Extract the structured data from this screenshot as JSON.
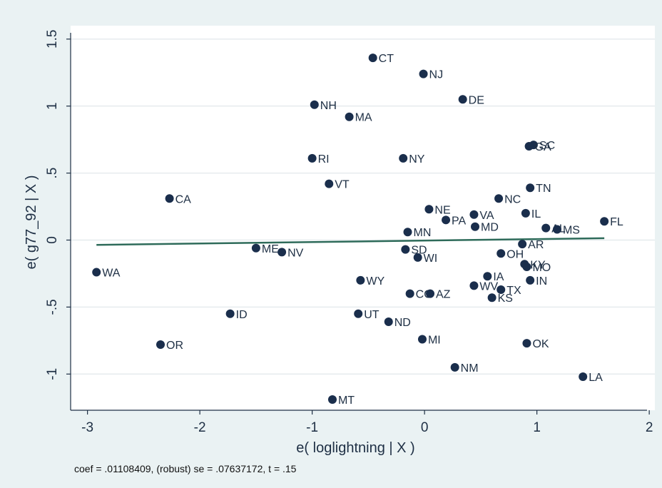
{
  "chart_data": {
    "type": "scatter",
    "xlabel": "e( loglightning | X )",
    "ylabel": "e( g77_92 | X )",
    "xlim": [
      -3.15,
      2.05
    ],
    "ylim": [
      -1.27,
      1.6
    ],
    "xticks": [
      -3,
      -2,
      -1,
      0,
      1,
      2
    ],
    "xtick_labels": [
      "-3",
      "-2",
      "-1",
      "0",
      "1",
      "2"
    ],
    "yticks": [
      -1,
      -0.5,
      0,
      0.5,
      1,
      1.5
    ],
    "ytick_labels": [
      "-1",
      "-.5",
      "0",
      ".5",
      "1",
      "1.5"
    ],
    "grid": "horizontal",
    "points": [
      {
        "label": "CT",
        "x": -0.46,
        "y": 1.36
      },
      {
        "label": "NJ",
        "x": -0.01,
        "y": 1.24
      },
      {
        "label": "DE",
        "x": 0.34,
        "y": 1.05
      },
      {
        "label": "NH",
        "x": -0.98,
        "y": 1.01
      },
      {
        "label": "MA",
        "x": -0.67,
        "y": 0.92
      },
      {
        "label": "SC",
        "x": 0.97,
        "y": 0.71
      },
      {
        "label": "GA",
        "x": 0.93,
        "y": 0.7
      },
      {
        "label": "RI",
        "x": -1.0,
        "y": 0.61
      },
      {
        "label": "NY",
        "x": -0.19,
        "y": 0.61
      },
      {
        "label": "VT",
        "x": -0.85,
        "y": 0.42
      },
      {
        "label": "TN",
        "x": 0.94,
        "y": 0.39
      },
      {
        "label": "CA",
        "x": -2.27,
        "y": 0.31
      },
      {
        "label": "NC",
        "x": 0.66,
        "y": 0.31
      },
      {
        "label": "NE",
        "x": 0.04,
        "y": 0.23
      },
      {
        "label": "IL",
        "x": 0.9,
        "y": 0.2
      },
      {
        "label": "VA",
        "x": 0.44,
        "y": 0.19
      },
      {
        "label": "PA",
        "x": 0.19,
        "y": 0.15
      },
      {
        "label": "FL",
        "x": 1.6,
        "y": 0.14
      },
      {
        "label": "MD",
        "x": 0.45,
        "y": 0.1
      },
      {
        "label": "AL",
        "x": 1.08,
        "y": 0.09
      },
      {
        "label": "MS",
        "x": 1.18,
        "y": 0.08
      },
      {
        "label": "MN",
        "x": -0.15,
        "y": 0.06
      },
      {
        "label": "AR",
        "x": 0.87,
        "y": -0.03
      },
      {
        "label": "ME",
        "x": -1.5,
        "y": -0.06
      },
      {
        "label": "SD",
        "x": -0.17,
        "y": -0.07
      },
      {
        "label": "NV",
        "x": -1.27,
        "y": -0.09
      },
      {
        "label": "OH",
        "x": 0.68,
        "y": -0.1
      },
      {
        "label": "WI",
        "x": -0.06,
        "y": -0.13
      },
      {
        "label": "KY",
        "x": 0.89,
        "y": -0.18
      },
      {
        "label": "MO",
        "x": 0.91,
        "y": -0.2
      },
      {
        "label": "WA",
        "x": -2.92,
        "y": -0.24
      },
      {
        "label": "IA",
        "x": 0.56,
        "y": -0.27
      },
      {
        "label": "WY",
        "x": -0.57,
        "y": -0.3
      },
      {
        "label": "IN",
        "x": 0.94,
        "y": -0.3
      },
      {
        "label": "WV",
        "x": 0.44,
        "y": -0.34
      },
      {
        "label": "TX",
        "x": 0.68,
        "y": -0.37
      },
      {
        "label": "CO",
        "x": -0.13,
        "y": -0.4
      },
      {
        "label": "AZ",
        "x": 0.05,
        "y": -0.4
      },
      {
        "label": "KS",
        "x": 0.6,
        "y": -0.43
      },
      {
        "label": "ID",
        "x": -1.73,
        "y": -0.55
      },
      {
        "label": "UT",
        "x": -0.59,
        "y": -0.55
      },
      {
        "label": "ND",
        "x": -0.32,
        "y": -0.61
      },
      {
        "label": "MI",
        "x": -0.02,
        "y": -0.74
      },
      {
        "label": "OR",
        "x": -2.35,
        "y": -0.78
      },
      {
        "label": "OK",
        "x": 0.91,
        "y": -0.77
      },
      {
        "label": "NM",
        "x": 0.27,
        "y": -0.95
      },
      {
        "label": "LA",
        "x": 1.41,
        "y": -1.02
      },
      {
        "label": "MT",
        "x": -0.82,
        "y": -1.19
      }
    ],
    "fit_line": {
      "x": [
        -2.92,
        1.6
      ],
      "y": [
        -0.036,
        0.014
      ]
    },
    "annotation": "coef = .01108409, (robust) se = .07637172, t = .15",
    "colors": {
      "marker": "#1a2e4c",
      "fit": "#2e6b5a",
      "plot_bg": "#ffffff",
      "page_bg": "#eaf2f3",
      "grid": "#e6ebee",
      "text": "#1e2f44"
    }
  }
}
